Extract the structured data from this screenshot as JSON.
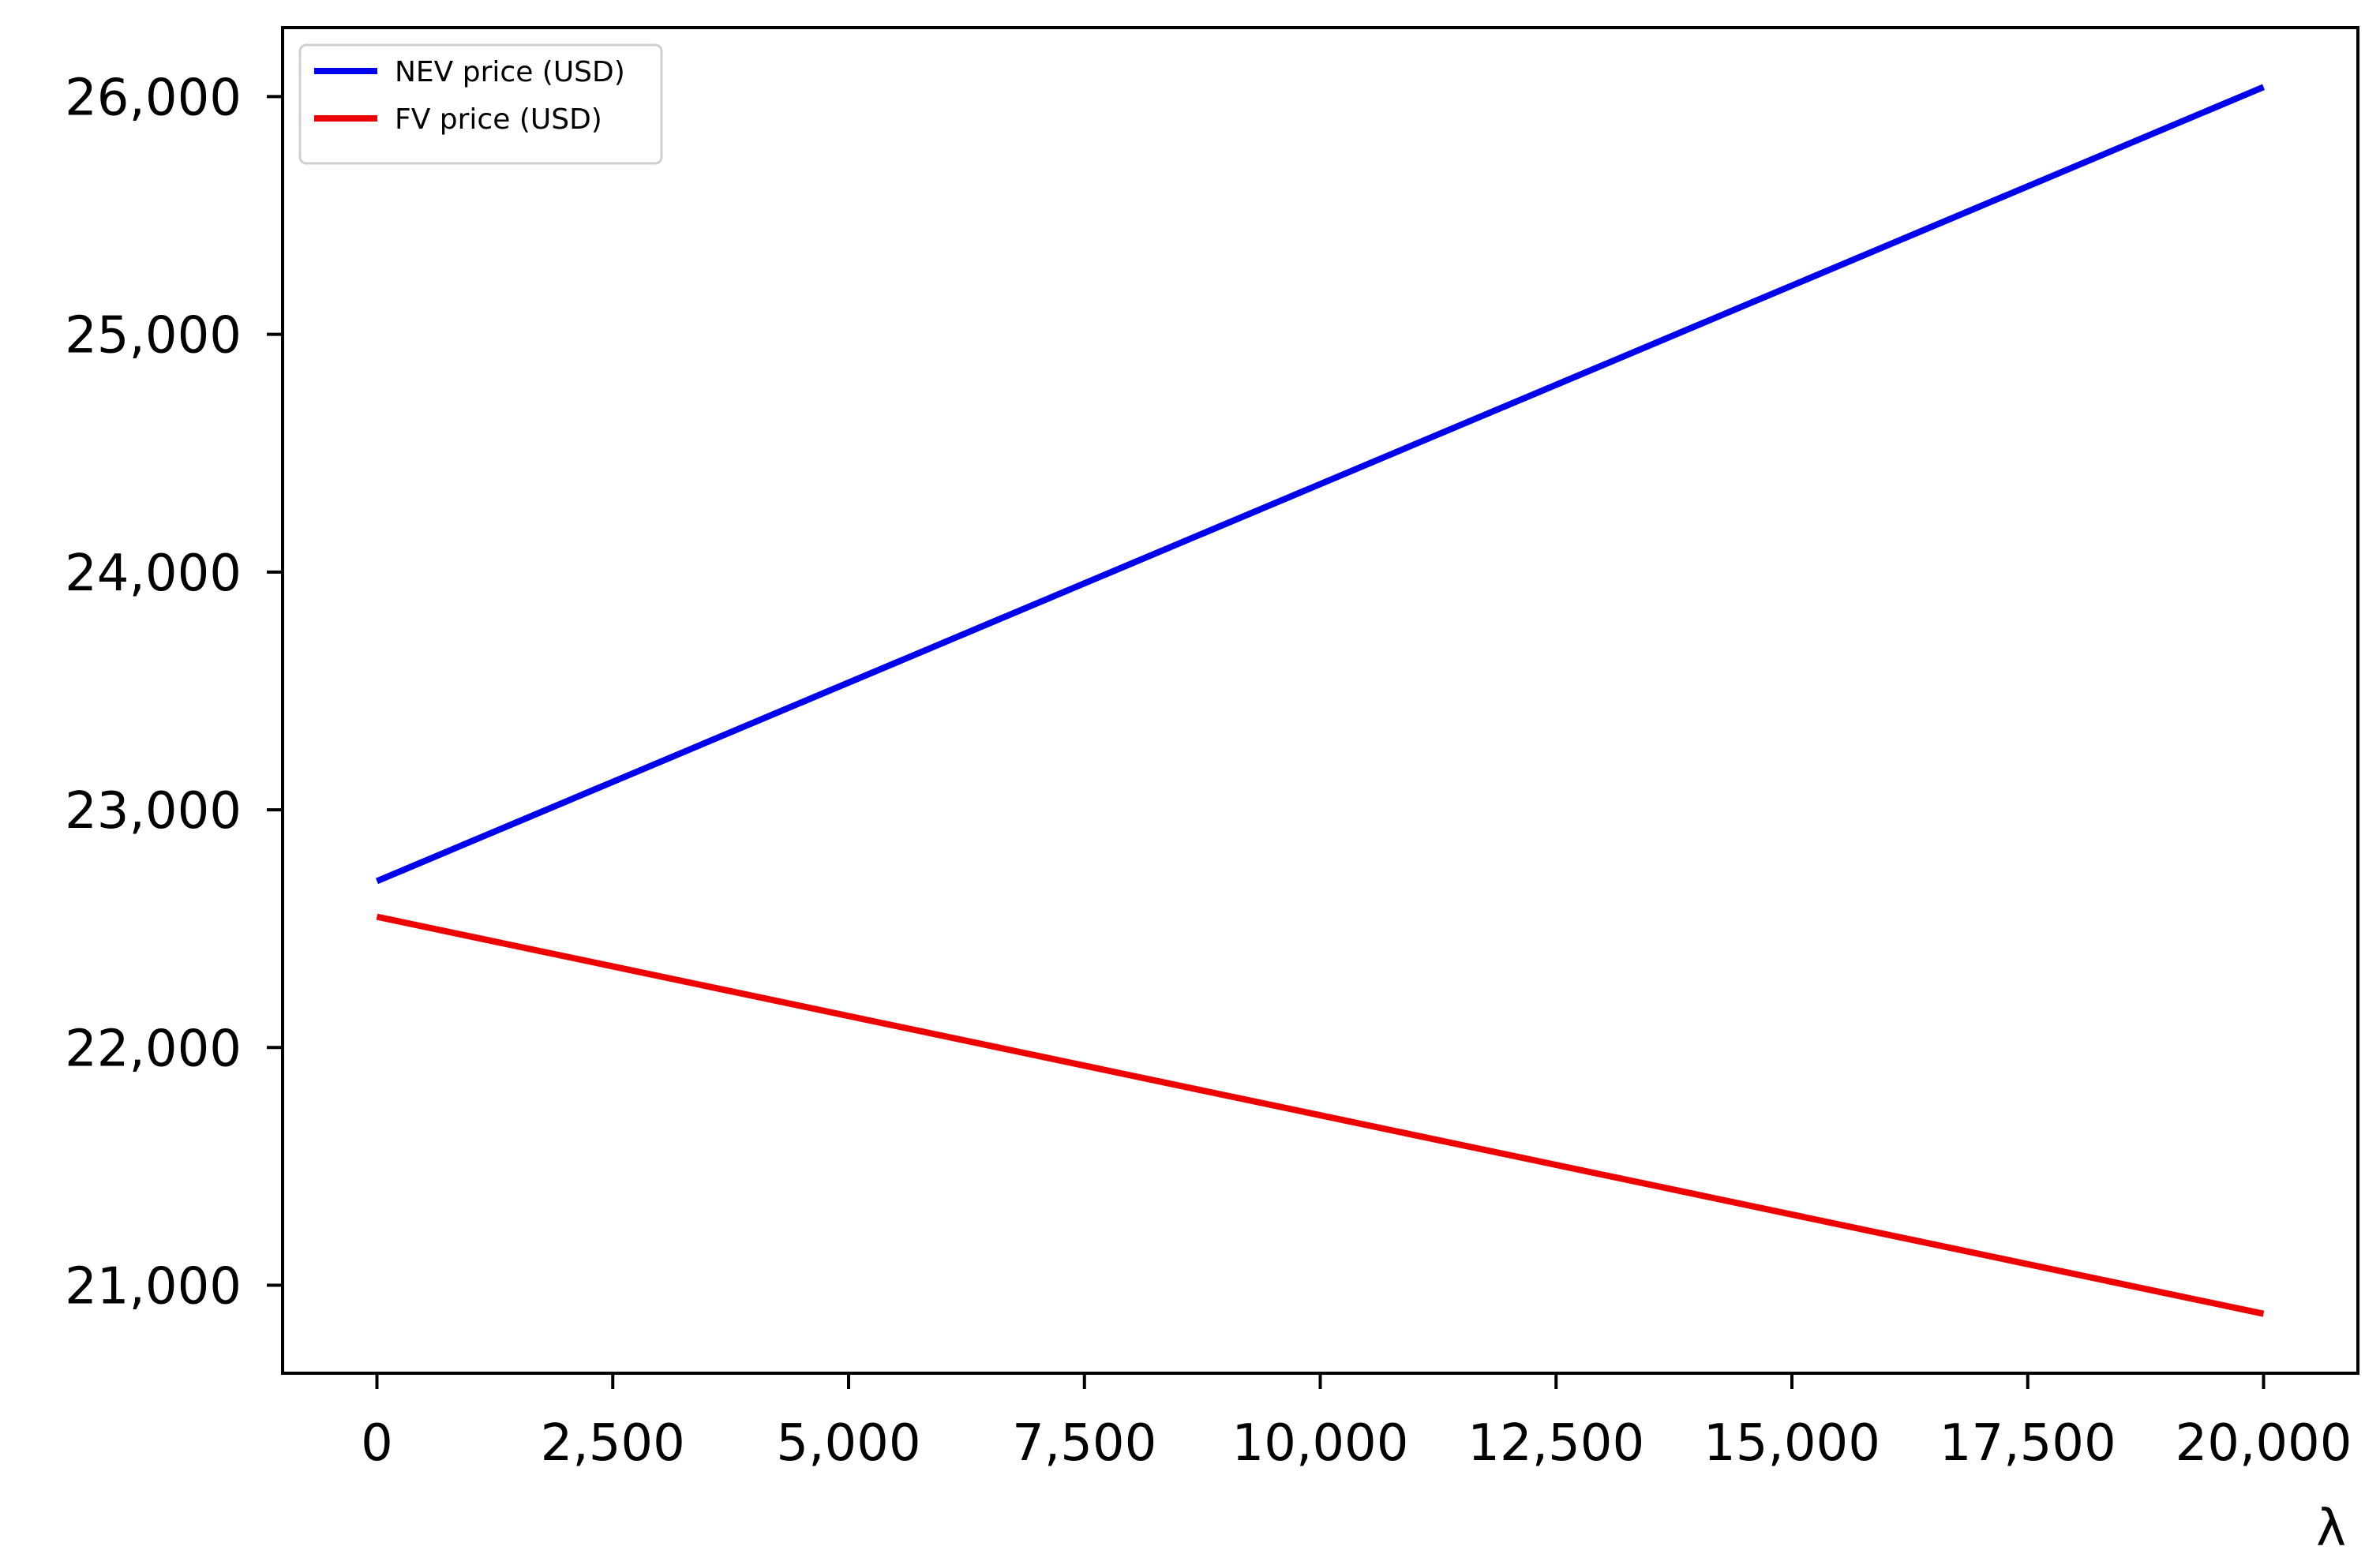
{
  "chart_data": {
    "type": "line",
    "title": "",
    "xlabel": "λ",
    "ylabel": "",
    "xlim": [
      -1000,
      21000
    ],
    "ylim": [
      20630,
      26290
    ],
    "xticks": [
      0,
      2500,
      5000,
      7500,
      10000,
      12500,
      15000,
      17500,
      20000
    ],
    "xtick_labels": [
      "0",
      "2,500",
      "5,000",
      "7,500",
      "10,000",
      "12,500",
      "15,000",
      "17,500",
      "20,000"
    ],
    "yticks": [
      21000,
      22000,
      23000,
      24000,
      25000,
      26000
    ],
    "ytick_labels": [
      "21,000",
      "22,000",
      "23,000",
      "24,000",
      "25,000",
      "26,000"
    ],
    "grid": false,
    "legend_position": "top-left",
    "series": [
      {
        "name": "NEV price (USD)",
        "color": "#0000ee",
        "x": [
          0,
          20000
        ],
        "y": [
          22700,
          26040
        ]
      },
      {
        "name": "FV price (USD)",
        "color": "#ee0000",
        "x": [
          0,
          20000
        ],
        "y": [
          22550,
          20880
        ]
      }
    ]
  }
}
